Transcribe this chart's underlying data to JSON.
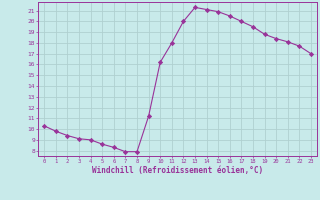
{
  "x": [
    0,
    1,
    2,
    3,
    4,
    5,
    6,
    7,
    8,
    9,
    10,
    11,
    12,
    13,
    14,
    15,
    16,
    17,
    18,
    19,
    20,
    21,
    22,
    23
  ],
  "y": [
    10.3,
    9.8,
    9.4,
    9.1,
    9.0,
    8.6,
    8.3,
    7.9,
    7.9,
    11.2,
    16.2,
    18.0,
    20.0,
    21.3,
    21.1,
    20.9,
    20.5,
    20.0,
    19.5,
    18.8,
    18.4,
    18.1,
    17.7,
    17.0
  ],
  "line_color": "#993399",
  "marker": "D",
  "marker_size": 2.2,
  "background_color": "#c8eaea",
  "grid_color": "#b0d0d0",
  "xlabel": "Windchill (Refroidissement éolien,°C)",
  "xlabel_color": "#993399",
  "tick_color": "#993399",
  "ylim": [
    7.5,
    21.8
  ],
  "xlim": [
    -0.5,
    23.5
  ],
  "yticks": [
    8,
    9,
    10,
    11,
    12,
    13,
    14,
    15,
    16,
    17,
    18,
    19,
    20,
    21
  ],
  "xticks": [
    0,
    1,
    2,
    3,
    4,
    5,
    6,
    7,
    8,
    9,
    10,
    11,
    12,
    13,
    14,
    15,
    16,
    17,
    18,
    19,
    20,
    21,
    22,
    23
  ]
}
